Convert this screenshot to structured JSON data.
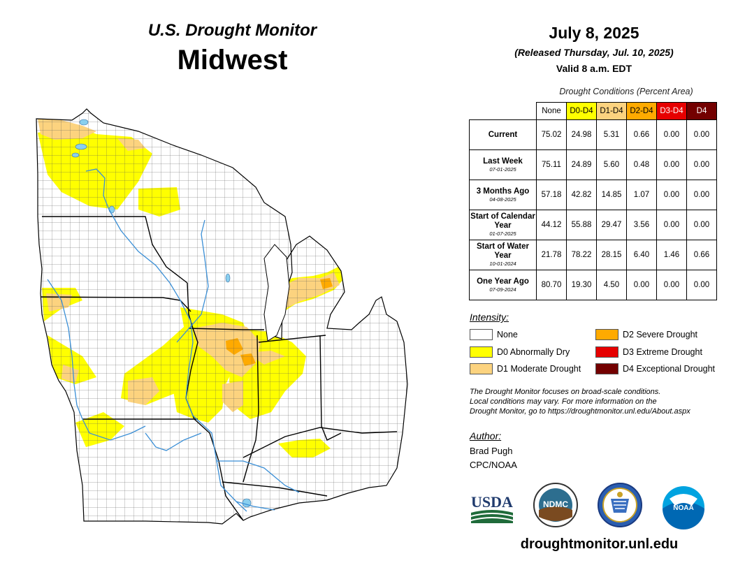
{
  "header": {
    "line1": "U.S. Drought Monitor",
    "line2": "Midwest"
  },
  "date_block": {
    "date": "July 8, 2025",
    "released": "(Released Thursday, Jul. 10, 2025)",
    "valid": "Valid 8 a.m. EDT"
  },
  "table": {
    "caption": "Drought Conditions (Percent Area)",
    "columns": [
      "None",
      "D0-D4",
      "D1-D4",
      "D2-D4",
      "D3-D4",
      "D4"
    ],
    "column_colors": [
      "#ffffff",
      "#ffff00",
      "#fcd37f",
      "#ffaa00",
      "#e60000",
      "#730000"
    ],
    "rows": [
      {
        "label": "Current",
        "date": "",
        "values": [
          "75.02",
          "24.98",
          "5.31",
          "0.66",
          "0.00",
          "0.00"
        ]
      },
      {
        "label": "Last Week",
        "date": "07-01-2025",
        "values": [
          "75.11",
          "24.89",
          "5.60",
          "0.48",
          "0.00",
          "0.00"
        ]
      },
      {
        "label": "3 Months Ago",
        "date": "04-08-2025",
        "values": [
          "57.18",
          "42.82",
          "14.85",
          "1.07",
          "0.00",
          "0.00"
        ]
      },
      {
        "label": "Start of Calendar Year",
        "date": "01-07-2025",
        "values": [
          "44.12",
          "55.88",
          "29.47",
          "3.56",
          "0.00",
          "0.00"
        ]
      },
      {
        "label": "Start of Water Year",
        "date": "10-01-2024",
        "values": [
          "21.78",
          "78.22",
          "28.15",
          "6.40",
          "1.46",
          "0.66"
        ]
      },
      {
        "label": "One Year Ago",
        "date": "07-09-2024",
        "values": [
          "80.70",
          "19.30",
          "4.50",
          "0.00",
          "0.00",
          "0.00"
        ]
      }
    ]
  },
  "legend": {
    "title": "Intensity:",
    "items": [
      {
        "label": "None",
        "color": "#ffffff"
      },
      {
        "label": "D0 Abnormally Dry",
        "color": "#ffff00"
      },
      {
        "label": "D1 Moderate Drought",
        "color": "#fcd37f"
      },
      {
        "label": "D2 Severe Drought",
        "color": "#ffaa00"
      },
      {
        "label": "D3 Extreme Drought",
        "color": "#e60000"
      },
      {
        "label": "D4 Exceptional Drought",
        "color": "#730000"
      }
    ]
  },
  "note": {
    "line1": "The Drought Monitor focuses on broad-scale conditions.",
    "line2": "Local conditions may vary. For more information on the",
    "line3": "Drought Monitor, go to https://droughtmonitor.unl.edu/About.aspx"
  },
  "author": {
    "title": "Author:",
    "name": "Brad Pugh",
    "org": "CPC/NOAA"
  },
  "logos": {
    "usda": "USDA",
    "ndmc": "NDMC",
    "noaa": "NOAA"
  },
  "url": "droughtmonitor.unl.edu",
  "colors": {
    "d0": "#ffff00",
    "d1": "#fcd37f",
    "d2": "#ffaa00",
    "water": "#89cfef",
    "river": "#3b8fd6"
  }
}
